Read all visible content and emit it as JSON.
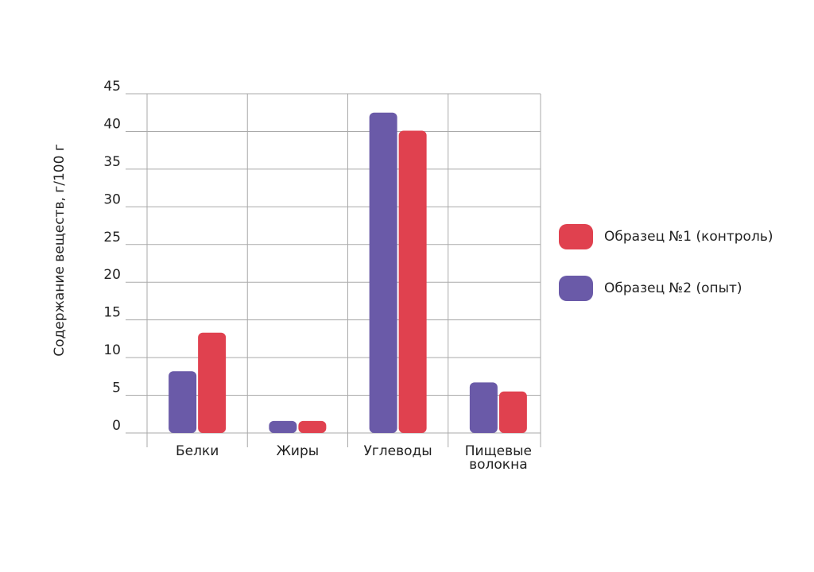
{
  "chart_data": {
    "type": "bar",
    "y_label": "Содержание веществ, г/100 г",
    "categories": [
      "Белки",
      "Жиры",
      "Углеводы",
      "Пищевые волокна"
    ],
    "series": [
      {
        "name": "Образец №1 (контроль)",
        "color": "#e0414f",
        "values": [
          13.3,
          1.6,
          40.1,
          5.5
        ]
      },
      {
        "name": "Образец №2 (опыт)",
        "color": "#6a5aa8",
        "values": [
          8.2,
          1.6,
          42.5,
          6.7
        ]
      }
    ],
    "ylim": [
      0,
      45
    ],
    "yticks": [
      0,
      5,
      10,
      15,
      20,
      25,
      30,
      35,
      40,
      45
    ],
    "grid": true
  }
}
